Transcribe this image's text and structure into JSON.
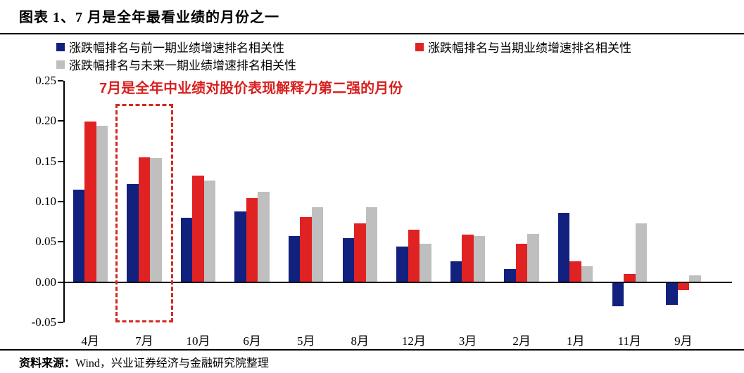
{
  "figure": {
    "title": "图表 1、7 月是全年最看业绩的月份之一",
    "source_prefix": "资料来源：",
    "source_text": "Wind，兴业证券经济与金融研究院整理"
  },
  "annotation": {
    "text": "7月是全年中业绩对股价表现解释力第二强的月份"
  },
  "colors": {
    "blue": "#12207e",
    "red": "#e02222",
    "gray": "#bfbfbf",
    "annotation_red": "#d91f1f",
    "highlight_red": "#d22a22"
  },
  "chart_data": {
    "type": "bar",
    "title": "图表 1、7 月是全年最看业绩的月份之一",
    "categories": [
      "4月",
      "7月",
      "10月",
      "6月",
      "5月",
      "8月",
      "12月",
      "3月",
      "2月",
      "1月",
      "11月",
      "9月"
    ],
    "series": [
      {
        "name": "涨跌幅排名与前一期业绩增速排名相关性",
        "color_key": "blue",
        "values": [
          0.115,
          0.122,
          0.08,
          0.088,
          0.057,
          0.055,
          0.044,
          0.026,
          0.016,
          0.086,
          -0.03,
          -0.028
        ]
      },
      {
        "name": "涨跌幅排名与当期业绩增速排名相关性",
        "color_key": "red",
        "values": [
          0.199,
          0.155,
          0.132,
          0.104,
          0.081,
          0.073,
          0.065,
          0.059,
          0.048,
          0.026,
          0.01,
          -0.01
        ]
      },
      {
        "name": "涨跌幅排名与未来一期业绩增速排名相关性",
        "color_key": "gray",
        "values": [
          0.194,
          0.154,
          0.126,
          0.112,
          0.093,
          0.093,
          0.048,
          0.057,
          0.06,
          0.02,
          0.073,
          0.008
        ]
      }
    ],
    "xlabel": "",
    "ylabel": "",
    "ylim": [
      -0.05,
      0.25
    ],
    "ytick_step": 0.05,
    "ytick_labels": [
      "0.25",
      "0.20",
      "0.15",
      "0.10",
      "0.05",
      "0.00",
      "-0.05"
    ],
    "grid": false,
    "legend_position": "top",
    "highlight": {
      "category": "7月",
      "style": "dashed-rectangle"
    }
  }
}
